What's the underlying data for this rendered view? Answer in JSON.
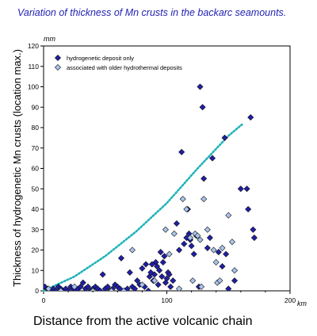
{
  "chart_data": {
    "type": "scatter",
    "title": "Variation of thickness of Mn crusts in the backarc seamounts.",
    "xlabel": "Distance from the active volcanic chain",
    "ylabel": "Thickness of hydrogenetic Mn crusts (location max.)",
    "x_unit": "km",
    "y_unit": "mm",
    "xlim": [
      0,
      200
    ],
    "ylim": [
      0,
      120
    ],
    "x_ticks": [
      0,
      100,
      200
    ],
    "y_ticks": [
      0,
      10,
      20,
      30,
      40,
      50,
      60,
      70,
      80,
      90,
      100,
      110,
      120
    ],
    "legend_position": "top-left",
    "grid": false,
    "colors": {
      "title": "#2323b4",
      "series_dark": "#1f1fa8",
      "series_light": "#a9c4ea",
      "trend": "#1fb3ba"
    },
    "series": [
      {
        "name": "hydrogenetic deposit only",
        "marker": "diamond-dark",
        "points": [
          [
            1,
            2
          ],
          [
            3,
            1
          ],
          [
            5,
            0
          ],
          [
            8,
            1
          ],
          [
            10,
            0
          ],
          [
            12,
            2
          ],
          [
            14,
            1
          ],
          [
            16,
            0
          ],
          [
            18,
            1
          ],
          [
            20,
            0
          ],
          [
            22,
            2
          ],
          [
            24,
            1
          ],
          [
            26,
            0
          ],
          [
            28,
            1
          ],
          [
            30,
            2
          ],
          [
            32,
            4
          ],
          [
            34,
            1
          ],
          [
            36,
            2
          ],
          [
            38,
            0
          ],
          [
            40,
            1
          ],
          [
            42,
            2
          ],
          [
            44,
            1
          ],
          [
            46,
            0
          ],
          [
            48,
            8
          ],
          [
            50,
            1
          ],
          [
            52,
            2
          ],
          [
            54,
            0
          ],
          [
            56,
            1
          ],
          [
            58,
            3
          ],
          [
            60,
            2
          ],
          [
            62,
            1
          ],
          [
            63,
            16
          ],
          [
            66,
            0
          ],
          [
            68,
            1
          ],
          [
            70,
            9
          ],
          [
            72,
            2
          ],
          [
            74,
            1
          ],
          [
            76,
            5
          ],
          [
            78,
            3
          ],
          [
            80,
            11
          ],
          [
            82,
            2
          ],
          [
            83,
            13
          ],
          [
            85,
            0
          ],
          [
            86,
            7
          ],
          [
            87,
            9
          ],
          [
            88,
            13
          ],
          [
            89,
            5
          ],
          [
            90,
            8
          ],
          [
            91,
            14
          ],
          [
            92,
            12
          ],
          [
            93,
            3
          ],
          [
            94,
            10
          ],
          [
            95,
            19
          ],
          [
            96,
            7
          ],
          [
            97,
            14
          ],
          [
            98,
            17
          ],
          [
            99,
            4
          ],
          [
            100,
            6
          ],
          [
            101,
            9
          ],
          [
            102,
            8
          ],
          [
            103,
            2
          ],
          [
            105,
            5
          ],
          [
            108,
            33
          ],
          [
            110,
            20
          ],
          [
            112,
            68
          ],
          [
            114,
            23
          ],
          [
            116,
            26
          ],
          [
            117,
            40
          ],
          [
            118,
            28
          ],
          [
            119,
            25
          ],
          [
            120,
            22
          ],
          [
            122,
            18
          ],
          [
            124,
            27
          ],
          [
            126,
            2
          ],
          [
            127,
            100
          ],
          [
            129,
            90
          ],
          [
            130,
            55
          ],
          [
            133,
            21
          ],
          [
            135,
            26
          ],
          [
            137,
            65
          ],
          [
            142,
            19
          ],
          [
            145,
            12
          ],
          [
            147,
            75
          ],
          [
            148,
            18
          ],
          [
            150,
            1
          ],
          [
            155,
            5
          ],
          [
            160,
            50
          ],
          [
            165,
            50
          ],
          [
            166,
            40
          ],
          [
            168,
            85
          ],
          [
            170,
            30
          ],
          [
            171,
            26
          ]
        ]
      },
      {
        "name": "associated with older hydrothermal deposits",
        "marker": "diamond-light",
        "points": [
          [
            4,
            1
          ],
          [
            14,
            0
          ],
          [
            25,
            2
          ],
          [
            40,
            0
          ],
          [
            55,
            0
          ],
          [
            65,
            0
          ],
          [
            72,
            20
          ],
          [
            80,
            3
          ],
          [
            90,
            5
          ],
          [
            99,
            30
          ],
          [
            102,
            18
          ],
          [
            106,
            28
          ],
          [
            110,
            1
          ],
          [
            113,
            45
          ],
          [
            116,
            40
          ],
          [
            119,
            26
          ],
          [
            121,
            5
          ],
          [
            123,
            28
          ],
          [
            125,
            27
          ],
          [
            127,
            25
          ],
          [
            128,
            2
          ],
          [
            130,
            45
          ],
          [
            133,
            30
          ],
          [
            138,
            20
          ],
          [
            140,
            14
          ],
          [
            141,
            4
          ],
          [
            143,
            5
          ],
          [
            145,
            21
          ],
          [
            150,
            37
          ],
          [
            153,
            24
          ],
          [
            155,
            10
          ]
        ]
      }
    ],
    "trend_curve": {
      "style": "dotted",
      "points": [
        [
          0,
          0
        ],
        [
          25,
          7
        ],
        [
          50,
          17
        ],
        [
          75,
          29
        ],
        [
          100,
          43
        ],
        [
          125,
          60
        ],
        [
          150,
          76
        ],
        [
          162,
          82
        ]
      ]
    }
  }
}
